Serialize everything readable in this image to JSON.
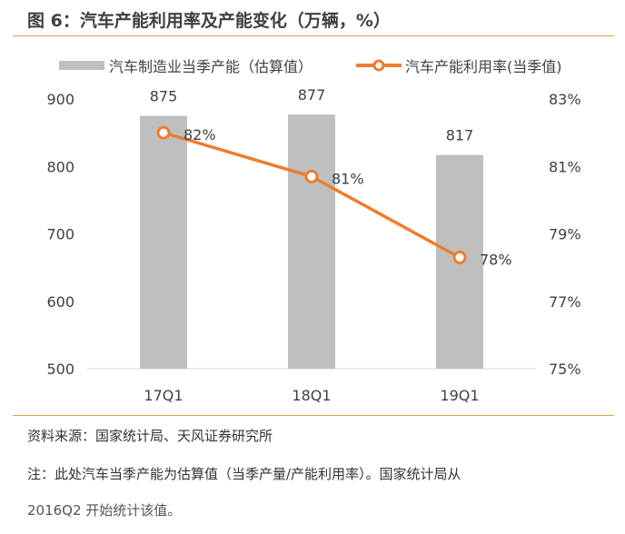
{
  "title": "图 6：汽车产能利用率及产能变化（万辆，%）",
  "source": "资料来源：国家统计局、天风证券研究所",
  "note_line1": "注：此处汽车当季产能为估算值（当季产量/产能利用率）。国家统计局从",
  "note_line2": "2016Q2 开始统计该值。",
  "colors": {
    "bar": "#bfbfbf",
    "line": "#ed7d31",
    "rule": "#d9a441",
    "text": "#404040"
  },
  "chart_data": {
    "type": "bar+line",
    "categories": [
      "17Q1",
      "18Q1",
      "19Q1"
    ],
    "series": [
      {
        "name": "汽车制造业当季产能（估算值）",
        "type": "bar",
        "axis": "left",
        "values": [
          875,
          877,
          817
        ],
        "labels": [
          "875",
          "877",
          "817"
        ]
      },
      {
        "name": "汽车产能利用率(当季值)",
        "type": "line",
        "axis": "right",
        "values": [
          82.0,
          80.7,
          78.3
        ],
        "labels": [
          "82%",
          "81%",
          "78%"
        ]
      }
    ],
    "left_axis": {
      "range": [
        500,
        900
      ],
      "ticks": [
        "500",
        "600",
        "700",
        "800",
        "900"
      ]
    },
    "right_axis": {
      "range": [
        75,
        83
      ],
      "ticks": [
        "75%",
        "77%",
        "79%",
        "81%",
        "83%"
      ]
    },
    "grid": false,
    "legend_position": "top"
  }
}
